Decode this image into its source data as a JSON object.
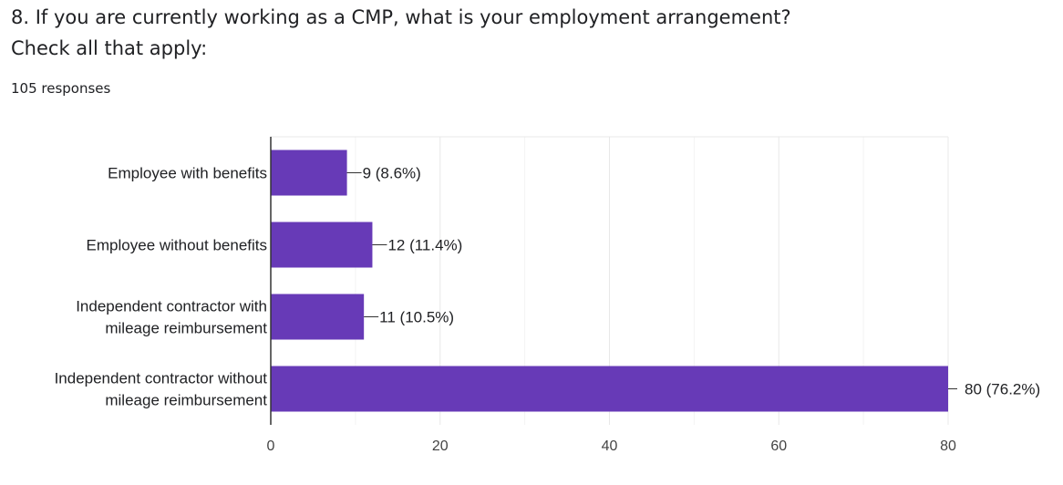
{
  "question": {
    "line1": "8. If you are currently working as a CMP, what is your employment arrangement?",
    "line2": "Check all that apply:"
  },
  "responses_label": "105 responses",
  "colors": {
    "bar": "#673ab7",
    "grid": "#e8e8e8",
    "axis": "#333333",
    "text": "#202124",
    "tick": "#444444"
  },
  "chart_data": {
    "type": "bar",
    "orientation": "horizontal",
    "categories": [
      [
        "Employee with benefits"
      ],
      [
        "Employee without benefits"
      ],
      [
        "Independent contractor with",
        "mileage reimbursement"
      ],
      [
        "Independent contractor without",
        "mileage reimbursement"
      ]
    ],
    "values": [
      9,
      12,
      11,
      80
    ],
    "value_labels": [
      "9 (8.6%)",
      "12 (11.4%)",
      "11 (10.5%)",
      "80 (76.2%)"
    ],
    "xlim": [
      0,
      80
    ],
    "xticks": [
      0,
      20,
      40,
      60,
      80
    ],
    "grid": true
  }
}
